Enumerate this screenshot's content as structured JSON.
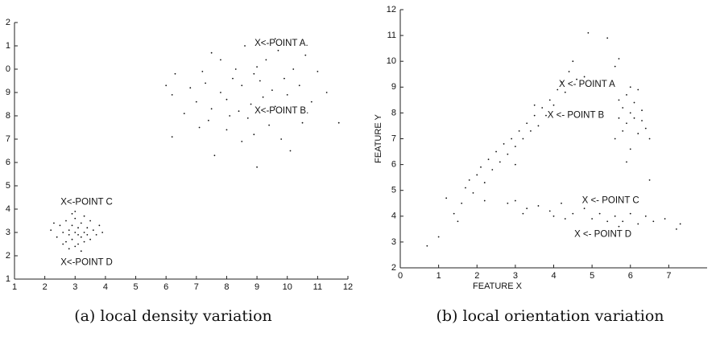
{
  "chart_data": [
    {
      "type": "scatter",
      "caption": "(a) local density variation",
      "color": "#111111",
      "xlim": [
        1,
        12
      ],
      "ylim": [
        1,
        12
      ],
      "xticks": [
        1,
        2,
        3,
        4,
        5,
        6,
        7,
        8,
        9,
        10,
        11,
        12
      ],
      "yticks": [
        1,
        2,
        3,
        4,
        5,
        6,
        7,
        8,
        9,
        {
          "value": 10,
          "label": "0"
        },
        {
          "value": 11,
          "label": "1"
        },
        {
          "value": 12,
          "label": "2"
        }
      ],
      "annotations": [
        "X<-POINT A.",
        "X<-POINT B.",
        "X<-POINT C",
        "X<-POINT D"
      ],
      "x": [
        2.2,
        2.4,
        2.5,
        2.6,
        2.7,
        2.7,
        2.8,
        2.8,
        2.9,
        2.9,
        3.0,
        3.0,
        3.0,
        3.1,
        3.1,
        3.2,
        3.2,
        3.3,
        3.3,
        3.4,
        3.4,
        3.5,
        3.5,
        3.6,
        3.7,
        3.8,
        2.6,
        2.9,
        3.2,
        3.0,
        2.3,
        3.9,
        2.8,
        3.3,
        3.1,
        6.0,
        6.2,
        6.2,
        6.3,
        6.6,
        6.8,
        7.0,
        7.2,
        7.3,
        7.4,
        7.5,
        7.5,
        7.6,
        7.8,
        7.8,
        8.0,
        8.0,
        8.2,
        8.3,
        8.4,
        8.5,
        8.5,
        8.6,
        8.7,
        8.8,
        8.9,
        9.0,
        9.0,
        9.1,
        9.2,
        9.3,
        9.4,
        9.5,
        9.6,
        9.7,
        9.8,
        9.9,
        10.0,
        10.1,
        10.2,
        10.4,
        10.5,
        10.6,
        10.8,
        11.0,
        11.3,
        11.7,
        8.1,
        8.9,
        9.6,
        7.1
      ],
      "values": [
        3.1,
        2.8,
        3.3,
        3.0,
        2.6,
        3.5,
        3.1,
        2.9,
        3.3,
        2.7,
        3.0,
        3.6,
        2.4,
        2.9,
        3.2,
        2.8,
        3.4,
        3.0,
        2.6,
        3.2,
        2.9,
        3.5,
        2.7,
        3.1,
        2.9,
        3.3,
        2.5,
        3.8,
        2.2,
        3.9,
        3.4,
        3.0,
        2.3,
        3.7,
        2.5,
        9.3,
        8.9,
        7.1,
        9.8,
        8.1,
        9.2,
        8.6,
        9.9,
        9.4,
        7.8,
        10.7,
        8.3,
        6.3,
        9.0,
        10.4,
        8.7,
        7.4,
        9.6,
        10.0,
        8.2,
        6.9,
        9.3,
        11.0,
        7.9,
        8.5,
        9.8,
        10.1,
        5.8,
        9.5,
        8.8,
        10.4,
        7.6,
        9.1,
        8.4,
        10.8,
        7.0,
        9.6,
        8.9,
        6.5,
        10.0,
        9.3,
        7.7,
        10.6,
        8.6,
        9.9,
        9.0,
        7.7,
        8.0,
        7.2,
        11.3,
        7.5
      ]
    },
    {
      "type": "scatter",
      "caption": "(b) local orientation variation",
      "color": "#111111",
      "xlabel": "FEATURE X",
      "ylabel": "FEATURE Y",
      "xlim": [
        0,
        8
      ],
      "ylim": [
        2,
        12
      ],
      "xticks": [
        0,
        1,
        2,
        3,
        4,
        5,
        6,
        7
      ],
      "yticks": [
        2,
        3,
        4,
        5,
        6,
        7,
        8,
        9,
        10,
        11,
        12
      ],
      "annotations": [
        "X <- POINT A",
        "X <- POINT B",
        "X <- POINT C",
        "X <- POINT D"
      ],
      "x": [
        0.7,
        1.0,
        1.2,
        1.4,
        1.6,
        1.7,
        1.8,
        1.9,
        2.0,
        2.1,
        2.2,
        2.3,
        2.4,
        2.5,
        2.6,
        2.7,
        2.8,
        2.9,
        3.0,
        3.1,
        3.2,
        3.3,
        3.4,
        3.5,
        3.6,
        3.7,
        3.8,
        3.9,
        4.0,
        4.1,
        4.2,
        4.3,
        4.4,
        4.5,
        4.6,
        4.8,
        4.9,
        5.4,
        2.2,
        3.0,
        3.5,
        1.5,
        5.6,
        5.7,
        5.7,
        5.8,
        5.8,
        5.9,
        5.9,
        6.0,
        6.0,
        6.0,
        6.1,
        6.1,
        6.2,
        6.2,
        6.3,
        6.3,
        6.4,
        6.5,
        5.6,
        5.9,
        6.5,
        5.7,
        2.8,
        3.0,
        3.3,
        3.6,
        3.9,
        4.2,
        4.5,
        4.8,
        5.0,
        5.2,
        5.4,
        5.6,
        5.8,
        6.0,
        6.2,
        6.4,
        6.6,
        6.9,
        7.2,
        7.3,
        4.3,
        5.7,
        3.2,
        4.0
      ],
      "values": [
        2.85,
        3.2,
        4.7,
        4.1,
        4.5,
        5.1,
        5.4,
        4.9,
        5.6,
        5.9,
        5.3,
        6.2,
        5.8,
        6.5,
        6.1,
        6.8,
        6.4,
        7.0,
        6.7,
        7.3,
        7.0,
        7.6,
        7.3,
        7.9,
        7.5,
        8.2,
        7.9,
        8.5,
        8.3,
        8.9,
        9.2,
        8.8,
        9.6,
        10.0,
        9.3,
        9.4,
        11.1,
        10.9,
        4.6,
        6.0,
        8.3,
        3.8,
        9.8,
        8.5,
        7.8,
        8.2,
        7.3,
        8.7,
        7.6,
        8.0,
        6.6,
        9.0,
        7.8,
        8.4,
        7.2,
        8.9,
        7.7,
        8.1,
        7.4,
        7.0,
        7.0,
        6.1,
        5.4,
        10.1,
        4.5,
        4.6,
        4.3,
        4.4,
        4.2,
        4.5,
        4.1,
        4.3,
        3.9,
        4.1,
        3.8,
        4.0,
        3.8,
        4.1,
        3.7,
        4.0,
        3.8,
        3.9,
        3.5,
        3.7,
        3.9,
        3.6,
        4.1,
        4.0
      ]
    }
  ]
}
